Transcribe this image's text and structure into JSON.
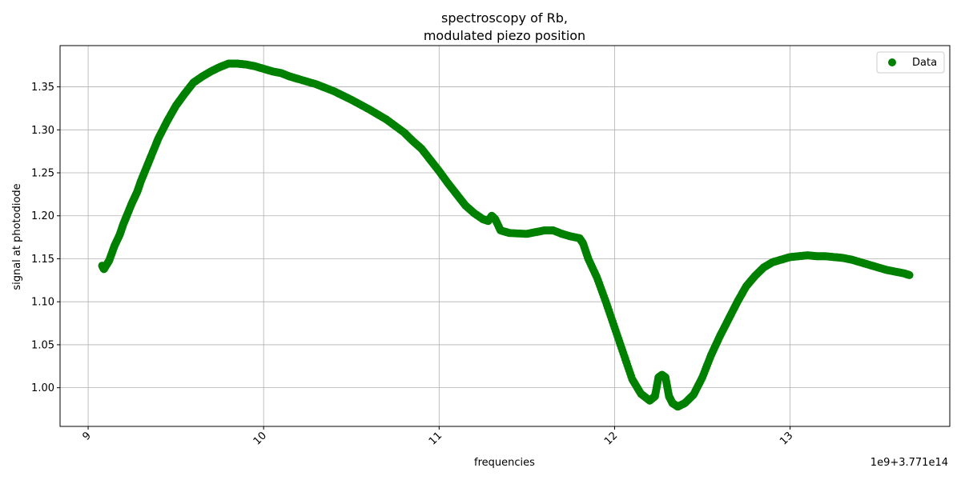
{
  "chart_data": {
    "type": "scatter",
    "title": "spectroscopy of Rb,\n modulated piezo position",
    "title_lines": [
      "spectroscopy of Rb,",
      "modulated piezo position"
    ],
    "xlabel": "frequencies",
    "ylabel": "signal at photodiode",
    "x_offset_text": "1e9+3.771e14",
    "xlim": [
      8.84,
      13.91
    ],
    "ylim": [
      0.955,
      1.398
    ],
    "x_ticks": [
      9,
      10,
      11,
      12,
      13
    ],
    "x_tick_labels": [
      "9",
      "10",
      "11",
      "12",
      "13"
    ],
    "y_ticks": [
      1.0,
      1.05,
      1.1,
      1.15,
      1.2,
      1.25,
      1.3,
      1.35
    ],
    "y_tick_labels": [
      "1.00",
      "1.05",
      "1.10",
      "1.15",
      "1.20",
      "1.25",
      "1.30",
      "1.35"
    ],
    "grid": true,
    "legend_position": "top-right",
    "series": [
      {
        "name": "Data",
        "color": "#008000",
        "marker": "circle",
        "x": [
          9.08,
          9.09,
          9.12,
          9.15,
          9.18,
          9.2,
          9.22,
          9.25,
          9.28,
          9.3,
          9.33,
          9.36,
          9.4,
          9.45,
          9.5,
          9.55,
          9.6,
          9.65,
          9.7,
          9.75,
          9.8,
          9.85,
          9.9,
          9.95,
          10.0,
          10.05,
          10.1,
          10.15,
          10.2,
          10.3,
          10.4,
          10.5,
          10.6,
          10.7,
          10.8,
          10.85,
          10.9,
          10.95,
          11.0,
          11.05,
          11.1,
          11.15,
          11.2,
          11.25,
          11.28,
          11.3,
          11.32,
          11.35,
          11.4,
          11.5,
          11.55,
          11.6,
          11.65,
          11.7,
          11.75,
          11.8,
          11.82,
          11.85,
          11.9,
          11.95,
          12.0,
          12.05,
          12.1,
          12.15,
          12.2,
          12.23,
          12.25,
          12.27,
          12.29,
          12.31,
          12.33,
          12.36,
          12.4,
          12.45,
          12.5,
          12.55,
          12.6,
          12.65,
          12.7,
          12.75,
          12.8,
          12.85,
          12.9,
          12.95,
          13.0,
          13.05,
          13.1,
          13.15,
          13.2,
          13.25,
          13.3,
          13.35,
          13.4,
          13.45,
          13.5,
          13.55,
          13.6,
          13.65,
          13.68
        ],
        "y": [
          1.142,
          1.138,
          1.148,
          1.165,
          1.178,
          1.19,
          1.2,
          1.215,
          1.228,
          1.24,
          1.255,
          1.27,
          1.29,
          1.31,
          1.328,
          1.342,
          1.355,
          1.362,
          1.368,
          1.373,
          1.377,
          1.377,
          1.376,
          1.374,
          1.371,
          1.368,
          1.366,
          1.362,
          1.359,
          1.353,
          1.345,
          1.335,
          1.324,
          1.312,
          1.297,
          1.287,
          1.278,
          1.265,
          1.252,
          1.238,
          1.225,
          1.212,
          1.203,
          1.196,
          1.194,
          1.2,
          1.196,
          1.183,
          1.18,
          1.179,
          1.181,
          1.183,
          1.183,
          1.179,
          1.176,
          1.174,
          1.168,
          1.15,
          1.128,
          1.1,
          1.07,
          1.04,
          1.01,
          0.993,
          0.985,
          0.99,
          1.012,
          1.015,
          1.012,
          0.99,
          0.982,
          0.978,
          0.982,
          0.992,
          1.012,
          1.038,
          1.06,
          1.08,
          1.1,
          1.118,
          1.13,
          1.14,
          1.146,
          1.149,
          1.152,
          1.153,
          1.154,
          1.153,
          1.153,
          1.152,
          1.151,
          1.149,
          1.146,
          1.143,
          1.14,
          1.137,
          1.135,
          1.133,
          1.131
        ]
      }
    ]
  }
}
